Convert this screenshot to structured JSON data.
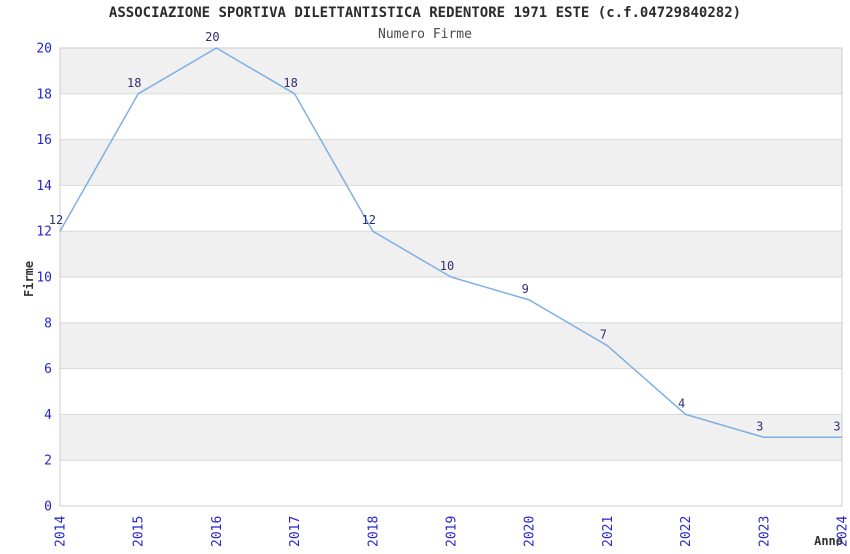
{
  "header": {
    "title": "ASSOCIAZIONE SPORTIVA DILETTANTISTICA REDENTORE 1971 ESTE (c.f.04729840282)",
    "subtitle": "Numero Firme"
  },
  "chart_data": {
    "type": "line",
    "title": "ASSOCIAZIONE SPORTIVA DILETTANTISTICA REDENTORE 1971 ESTE (c.f.04729840282)",
    "subtitle": "Numero Firme",
    "xlabel": "Anno",
    "ylabel": "Firme",
    "categories": [
      "2014",
      "2015",
      "2016",
      "2017",
      "2018",
      "2019",
      "2020",
      "2021",
      "2022",
      "2023",
      "2024"
    ],
    "series": [
      {
        "name": "Numero Firme",
        "values": [
          12,
          18,
          20,
          18,
          12,
          10,
          9,
          7,
          4,
          3,
          3
        ]
      }
    ],
    "ylim": [
      0,
      20
    ],
    "ytick_step": 2,
    "yticks": [
      0,
      2,
      4,
      6,
      8,
      10,
      12,
      14,
      16,
      18,
      20
    ],
    "point_labels": [
      "12",
      "18",
      "20",
      "18",
      "12",
      "10",
      "9",
      "7",
      "4",
      "3",
      "3"
    ],
    "grid": "horizontal alternating bands every 2 units",
    "legend_position": "none",
    "colors": {
      "line": "#7fb0e4",
      "band_gray": "#f0f0f0",
      "band_white": "#ffffff",
      "gridline": "#d9d9d9",
      "plot_border": "#cccccc",
      "tick_label_blue": "#2626cc",
      "point_label_navy": "#30306e",
      "axis_title_dark": "#333333",
      "title_color": "#2b2b2b",
      "subtitle_color": "#4a4a4a",
      "background": "#ffffff"
    }
  }
}
